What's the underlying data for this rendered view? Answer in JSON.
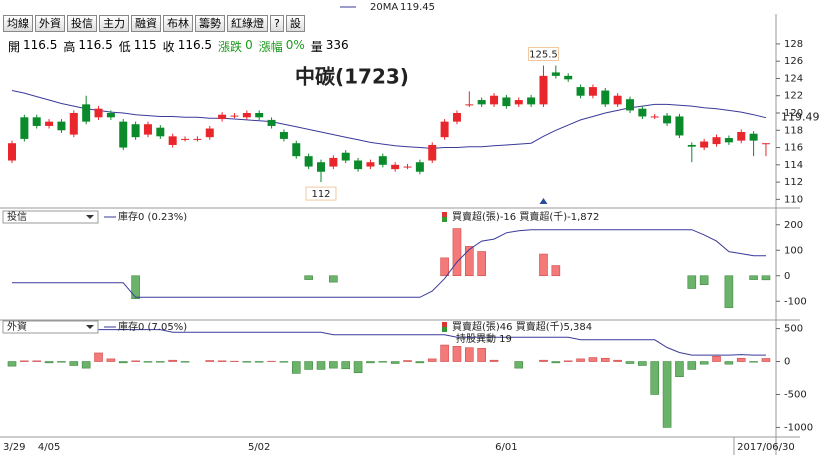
{
  "toolbar": [
    "均線",
    "外資",
    "投信",
    "主力",
    "融資",
    "布林",
    "籌勢",
    "紅綠燈",
    "?",
    "設"
  ],
  "info": [
    {
      "label": "開",
      "value": "116.5"
    },
    {
      "label": "高",
      "value": "116.5"
    },
    {
      "label": "低",
      "value": "115"
    },
    {
      "label": "收",
      "value": "116.5"
    },
    {
      "label": "漲跌",
      "value": "0",
      "color": "#1a9a1a"
    },
    {
      "label": "漲幅",
      "value": "0%",
      "color": "#1a9a1a"
    },
    {
      "label": "量",
      "value": "336"
    }
  ],
  "chart_data": [
    {
      "type": "candlestick",
      "title": "中碳(1723)",
      "categories": [
        "3/29",
        null,
        null,
        "4/05",
        null,
        null,
        null,
        null,
        null,
        null,
        null,
        null,
        null,
        null,
        null,
        null,
        null,
        null,
        null,
        null,
        "5/02",
        null,
        null,
        null,
        null,
        null,
        null,
        null,
        null,
        null,
        null,
        null,
        null,
        null,
        null,
        null,
        null,
        null,
        null,
        null,
        "6/01",
        null,
        null,
        null,
        null,
        null,
        null,
        null,
        null,
        null,
        null,
        null,
        null,
        null,
        null,
        null,
        null,
        null,
        null,
        null,
        null,
        "2017/06/30"
      ],
      "open": [
        114.5,
        119.5,
        119.5,
        118.5,
        119,
        117.5,
        121,
        119.5,
        120,
        119,
        118.7,
        117.5,
        118.3,
        116.3,
        117,
        117,
        117.2,
        119.3,
        119.7,
        119.5,
        120,
        119.2,
        117.8,
        116.5,
        115,
        114.3,
        113.8,
        115.4,
        114.5,
        113.8,
        115,
        113.5,
        113.8,
        114.3,
        114.5,
        117.2,
        119,
        121,
        121.5,
        121,
        121.8,
        121,
        121.8,
        121,
        124.7,
        124.3,
        123,
        122,
        122.6,
        121,
        121.6,
        120.5,
        119.6,
        119.7,
        119.6,
        116.3,
        116,
        116.4,
        117.1,
        116.8,
        117.6,
        116.5
      ],
      "high": [
        116.8,
        119.8,
        119.8,
        119.3,
        119.3,
        120.3,
        122,
        120.8,
        120.3,
        119.3,
        119,
        119,
        118.6,
        117.6,
        117.3,
        117.3,
        118.5,
        120.1,
        120,
        120.3,
        120.3,
        119.5,
        118.1,
        116.8,
        115.3,
        114.6,
        115.1,
        115.7,
        114.8,
        114.6,
        115.3,
        114.3,
        114.1,
        114.6,
        116.6,
        119.3,
        120.3,
        122.5,
        121.8,
        122.3,
        122.1,
        121.8,
        122.1,
        125.5,
        125.5,
        124.6,
        123.3,
        123.3,
        122.9,
        122.3,
        121.9,
        120.8,
        119.9,
        120,
        119.9,
        116.6,
        117,
        117.5,
        117.4,
        118.1,
        117.9,
        116.5
      ],
      "low": [
        114.2,
        116.7,
        118.2,
        118.2,
        117.7,
        117.2,
        118.7,
        119.2,
        119.2,
        115.7,
        116.9,
        117.2,
        117,
        116,
        116.7,
        116.7,
        116.9,
        119,
        119.4,
        119.2,
        119.2,
        118.2,
        116.7,
        114.7,
        113.5,
        112,
        113.5,
        114.2,
        113.2,
        113.5,
        113.7,
        113.2,
        113.5,
        112.9,
        114.2,
        116.9,
        118.7,
        120.7,
        120.7,
        120.7,
        120.5,
        120.7,
        120.7,
        120.7,
        124,
        123.6,
        121.7,
        121.7,
        120.7,
        120.7,
        120,
        119.3,
        119.3,
        118.5,
        117.1,
        114.3,
        115.7,
        116.1,
        116.3,
        116.5,
        115,
        115
      ],
      "close": [
        116.5,
        117,
        118.5,
        119,
        118,
        120,
        119,
        120.5,
        119.5,
        116,
        117.2,
        118.7,
        117.3,
        117.3,
        117,
        117,
        118.2,
        119.8,
        119.7,
        120,
        119.5,
        118.5,
        117,
        115,
        113.8,
        113.2,
        114.8,
        114.5,
        113.5,
        114.3,
        114,
        114,
        113.8,
        113.2,
        116.3,
        119,
        120,
        121,
        121,
        122,
        120.8,
        121.5,
        121,
        124.3,
        124.3,
        123.9,
        122,
        123,
        121,
        122,
        120.3,
        119.6,
        119.6,
        118.8,
        117.4,
        116.1,
        116.7,
        117.2,
        116.6,
        117.8,
        116.8,
        116.5
      ],
      "up_color": "#e8262b",
      "down_color": "#0a8a2a",
      "series": [
        {
          "name": "20MA",
          "color": "#3a3a9a",
          "values": [
            122.6,
            122.3,
            121.9,
            121.5,
            121.1,
            120.8,
            120.5,
            120.3,
            120.1,
            120,
            119.8,
            119.7,
            119.6,
            119.6,
            119.5,
            119.5,
            119.4,
            119.4,
            119.3,
            119.2,
            119.1,
            119,
            118.7,
            118.4,
            118.1,
            117.8,
            117.5,
            117.2,
            116.9,
            116.6,
            116.4,
            116.2,
            116.1,
            116,
            115.9,
            116,
            116,
            116.1,
            116.1,
            116.2,
            116.3,
            116.4,
            116.5,
            117.3,
            118,
            118.6,
            119.2,
            119.6,
            120,
            120.3,
            120.6,
            120.8,
            121,
            121,
            120.9,
            120.8,
            120.6,
            120.5,
            120.3,
            120.1,
            119.8,
            119.45
          ]
        }
      ],
      "last_price_label": 119.49,
      "ylim": [
        109,
        131
      ],
      "yticks": [
        110,
        112,
        114,
        116,
        118,
        120,
        122,
        124,
        126,
        128
      ]
    },
    {
      "type": "bar",
      "selector": "投信",
      "note": "買賣超(張)-16 買賣超(千)-1,872",
      "values": [
        0,
        0,
        0,
        0,
        0,
        0,
        0,
        0,
        0,
        0,
        -90,
        0,
        0,
        0,
        0,
        0,
        0,
        0,
        0,
        0,
        0,
        0,
        0,
        0,
        -15,
        0,
        -25,
        0,
        0,
        0,
        0,
        0,
        0,
        0,
        0,
        70,
        185,
        115,
        95,
        0,
        0,
        0,
        0,
        85,
        40,
        0,
        0,
        0,
        0,
        0,
        0,
        0,
        0,
        0,
        0,
        -50,
        -35,
        0,
        -125,
        0,
        -15,
        -16
      ],
      "up_color": "#f47a7a",
      "down_color": "#6bb36b",
      "series": [
        {
          "name": "庫存0 (0.23%)",
          "color": "#3a3a9a",
          "axis": "y2",
          "values": [
            0.1,
            0.1,
            0.1,
            0.1,
            0.1,
            0.1,
            0.1,
            0.1,
            0.1,
            0.1,
            0.03,
            0.03,
            0.03,
            0.03,
            0.03,
            0.03,
            0.03,
            0.03,
            0.03,
            0.03,
            0.03,
            0.03,
            0.03,
            0.03,
            0.03,
            0.03,
            0.03,
            0.03,
            0.03,
            0.03,
            0.03,
            0.03,
            0.03,
            0.03,
            0.06,
            0.12,
            0.2,
            0.26,
            0.3,
            0.31,
            0.34,
            0.35,
            0.355,
            0.355,
            0.355,
            0.355,
            0.355,
            0.355,
            0.355,
            0.355,
            0.355,
            0.355,
            0.355,
            0.355,
            0.355,
            0.355,
            0.33,
            0.3,
            0.25,
            0.24,
            0.23,
            0.23
          ]
        }
      ],
      "ylim": [
        -150,
        250
      ],
      "yticks": [
        -100,
        0,
        100,
        200
      ],
      "y2lim": [
        -0.05,
        0.44
      ]
    },
    {
      "type": "bar",
      "selector": "外資",
      "note": "買賣超(張)46 買賣超(千)5,384",
      "note2": "持股異動 19",
      "values": [
        -70,
        10,
        10,
        -20,
        -10,
        -60,
        -100,
        130,
        40,
        -20,
        10,
        -10,
        -10,
        20,
        -10,
        0,
        15,
        10,
        5,
        -10,
        -10,
        5,
        -10,
        -180,
        -120,
        -120,
        -100,
        -110,
        -170,
        -20,
        -10,
        -30,
        15,
        -20,
        40,
        250,
        230,
        210,
        200,
        20,
        0,
        -100,
        0,
        20,
        -20,
        10,
        40,
        60,
        50,
        20,
        -30,
        -60,
        -500,
        -1000,
        -230,
        -120,
        -40,
        80,
        -40,
        50,
        -10,
        46
      ],
      "up_color": "#f47a7a",
      "down_color": "#6bb36b",
      "series": [
        {
          "name": "庫存0 (7.05%)",
          "color": "#3a3a9a",
          "axis": "y2",
          "values": [
            7.55,
            7.55,
            7.55,
            7.55,
            7.55,
            7.55,
            7.55,
            7.55,
            7.55,
            7.55,
            7.55,
            7.55,
            7.55,
            7.5,
            7.5,
            7.5,
            7.5,
            7.5,
            7.5,
            7.5,
            7.5,
            7.5,
            7.5,
            7.5,
            7.5,
            7.5,
            7.45,
            7.45,
            7.45,
            7.45,
            7.45,
            7.45,
            7.45,
            7.45,
            7.45,
            7.45,
            7.4,
            7.4,
            7.4,
            7.4,
            7.4,
            7.4,
            7.4,
            7.4,
            7.4,
            7.4,
            7.35,
            7.35,
            7.35,
            7.35,
            7.35,
            7.35,
            7.35,
            7.2,
            7.1,
            7.05,
            7.05,
            7.05,
            7.05,
            7.06,
            7.05,
            7.05
          ]
        }
      ],
      "ylim": [
        -1100,
        600
      ],
      "yticks": [
        -1000,
        -500,
        0,
        500
      ],
      "y2lim": [
        5.5,
        7.7
      ]
    }
  ]
}
